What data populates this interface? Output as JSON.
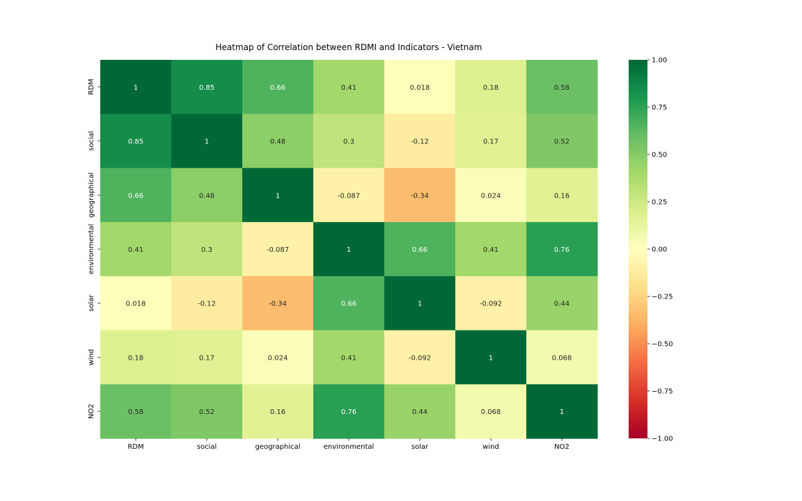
{
  "chart_data": {
    "type": "heatmap",
    "title": "Heatmap of Correlation between RDMI and Indicators - Vietnam",
    "x_labels": [
      "RDM",
      "social",
      "geographical",
      "environmental",
      "solar",
      "wind",
      "NO2"
    ],
    "y_labels": [
      "RDM",
      "social",
      "geographical",
      "environmental",
      "solar",
      "wind",
      "NO2"
    ],
    "values": [
      [
        1,
        0.85,
        0.66,
        0.41,
        0.018,
        0.18,
        0.58
      ],
      [
        0.85,
        1,
        0.48,
        0.3,
        -0.12,
        0.17,
        0.52
      ],
      [
        0.66,
        0.48,
        1,
        -0.087,
        -0.34,
        0.024,
        0.16
      ],
      [
        0.41,
        0.3,
        -0.087,
        1,
        0.66,
        0.41,
        0.76
      ],
      [
        0.018,
        -0.12,
        -0.34,
        0.66,
        1,
        -0.092,
        0.44
      ],
      [
        0.18,
        0.17,
        0.024,
        0.41,
        -0.092,
        1,
        0.068
      ],
      [
        0.58,
        0.52,
        0.16,
        0.76,
        0.44,
        0.068,
        1
      ]
    ],
    "value_labels": [
      [
        "1",
        "0.85",
        "0.66",
        "0.41",
        "0.018",
        "0.18",
        "0.58"
      ],
      [
        "0.85",
        "1",
        "0.48",
        "0.3",
        "-0.12",
        "0.17",
        "0.52"
      ],
      [
        "0.66",
        "0.48",
        "1",
        "-0.087",
        "-0.34",
        "0.024",
        "0.16"
      ],
      [
        "0.41",
        "0.3",
        "-0.087",
        "1",
        "0.66",
        "0.41",
        "0.76"
      ],
      [
        "0.018",
        "-0.12",
        "-0.34",
        "0.66",
        "1",
        "-0.092",
        "0.44"
      ],
      [
        "0.18",
        "0.17",
        "0.024",
        "0.41",
        "-0.092",
        "1",
        "0.068"
      ],
      [
        "0.58",
        "0.52",
        "0.16",
        "0.76",
        "0.44",
        "0.068",
        "1"
      ]
    ],
    "colormap": "RdYlGn",
    "vmin": -1,
    "vmax": 1,
    "colorbar_ticks": [
      1,
      0.75,
      0.5,
      0.25,
      0,
      -0.25,
      -0.5,
      -0.75,
      -1
    ],
    "colorbar_tick_labels": [
      "1.00",
      "0.75",
      "0.50",
      "0.25",
      "0.00",
      "−0.25",
      "−0.50",
      "−0.75",
      "−1.00"
    ]
  }
}
